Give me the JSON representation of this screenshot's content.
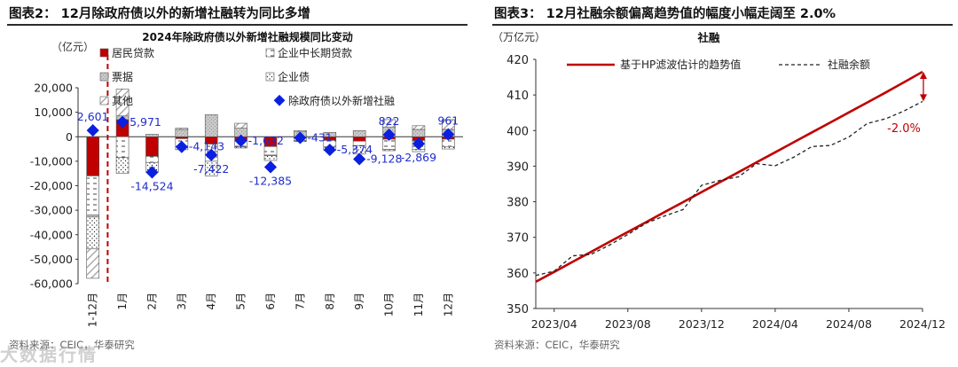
{
  "left": {
    "figure_title": "图表2：  12月除政府债以外的新增社融转为同比多增",
    "source": "资料来源：CEIC，华泰研究",
    "watermark": "大数据行情",
    "chart_data": {
      "type": "bar",
      "stacked": true,
      "title": "2024年除政府债以外新增社融规模同比变动",
      "unit_label": "（亿元）",
      "ylim": [
        -60000,
        20000
      ],
      "yticks": [
        20000,
        10000,
        0,
        -10000,
        -20000,
        -30000,
        -40000,
        -50000,
        -60000
      ],
      "ytick_labels": [
        "20,000",
        "10,000",
        "0",
        "-10,000",
        "-20,000",
        "-30,000",
        "-40,000",
        "-50,000",
        "-60,000"
      ],
      "categories": [
        "1-12月",
        "1月",
        "2月",
        "3月",
        "4月",
        "5月",
        "6月",
        "7月",
        "8月",
        "9月",
        "10月",
        "11月",
        "12月"
      ],
      "divider_after_index": 0,
      "colors": {
        "resident": "#c00000",
        "marker": "#0a1fe0",
        "label": "#1f2dcc",
        "divider": "#c00000"
      },
      "series": [
        {
          "name": "居民贷款",
          "key": "resident",
          "values": [
            -16000,
            7000,
            -8000,
            -800,
            -3000,
            -1500,
            -4000,
            -500,
            -1500,
            -1800,
            -1000,
            -1500,
            -1000
          ]
        },
        {
          "name": "企业中长期贷款",
          "key": "corp_lt",
          "values": [
            -16000,
            -8500,
            -2500,
            -3000,
            -7000,
            -2600,
            -3500,
            -1000,
            -2500,
            -1800,
            -4200,
            -3600,
            -3000
          ]
        },
        {
          "name": "票据",
          "key": "bills",
          "values": [
            -800,
            1500,
            1000,
            3000,
            9000,
            3500,
            -200,
            2000,
            1800,
            2500,
            4000,
            3000,
            3000
          ]
        },
        {
          "name": "企业债",
          "key": "corp_bond",
          "values": [
            -13000,
            -6500,
            -4000,
            -1500,
            -6000,
            -500,
            -2000,
            -500,
            -1500,
            -3500,
            -500,
            -1000,
            -1000
          ]
        },
        {
          "name": "其他",
          "key": "other",
          "values": [
            -12000,
            11000,
            0,
            500,
            0,
            2000,
            0,
            500,
            0,
            0,
            3000,
            1500,
            4000
          ]
        },
        {
          "name": "除政府债以外新增社融",
          "key": "total",
          "values": [
            2601,
            5971,
            -14524,
            -4143,
            -7422,
            -1632,
            -12385,
            -431,
            -5374,
            -9128,
            822,
            -2869,
            961
          ]
        }
      ],
      "total_labels": [
        "2,601",
        "5,971",
        "-14,524",
        "-4,143",
        "-7,422",
        "-1,632",
        "-12,385",
        "-431",
        "-5,374",
        "-9,128",
        "822",
        "-2,869",
        "961"
      ],
      "total_label_pos": [
        "above",
        "right",
        "below",
        "right",
        "below",
        "right",
        "below",
        "right",
        "right",
        "right",
        "above",
        "below",
        "above"
      ]
    }
  },
  "right": {
    "figure_title": "图表3：  12月社融余额偏离趋势值的幅度小幅走阔至 2.0%",
    "source": "资料来源：CEIC，华泰研究",
    "chart_data": {
      "type": "line",
      "title": "社融",
      "unit_label": "（万亿元）",
      "ylim": [
        350,
        420
      ],
      "yticks": [
        350,
        360,
        370,
        380,
        390,
        400,
        410,
        420
      ],
      "xlim": [
        "2023-03",
        "2024-12"
      ],
      "xticks": [
        "2023/04",
        "2023/08",
        "2023/12",
        "2024/04",
        "2024/08",
        "2024/12"
      ],
      "x": [
        "2023-03",
        "2023-04",
        "2023-05",
        "2023-06",
        "2023-07",
        "2023-08",
        "2023-09",
        "2023-10",
        "2023-11",
        "2023-12",
        "2024-01",
        "2024-02",
        "2024-03",
        "2024-04",
        "2024-05",
        "2024-06",
        "2024-07",
        "2024-08",
        "2024-09",
        "2024-10",
        "2024-11",
        "2024-12"
      ],
      "series": [
        {
          "name": "基于HP滤波估计的趋势值",
          "color": "#c00000",
          "style": "solid",
          "values": [
            357.5,
            360.3,
            363.1,
            365.9,
            368.7,
            371.5,
            374.3,
            377.1,
            379.9,
            382.7,
            385.5,
            388.3,
            391.1,
            393.9,
            396.7,
            399.5,
            402.3,
            405.1,
            407.9,
            410.7,
            413.6,
            416.5
          ]
        },
        {
          "name": "社融余额",
          "color": "#222222",
          "style": "dashed",
          "values": [
            359.3,
            360.5,
            364.8,
            365.2,
            367.8,
            370.8,
            374.0,
            376.0,
            377.8,
            384.6,
            386.0,
            387.0,
            390.7,
            390.1,
            392.5,
            395.5,
            395.8,
            398.2,
            402.0,
            403.3,
            405.5,
            408.2
          ]
        }
      ],
      "annotation": {
        "text": "-2.0%",
        "color": "#c00000"
      }
    }
  }
}
